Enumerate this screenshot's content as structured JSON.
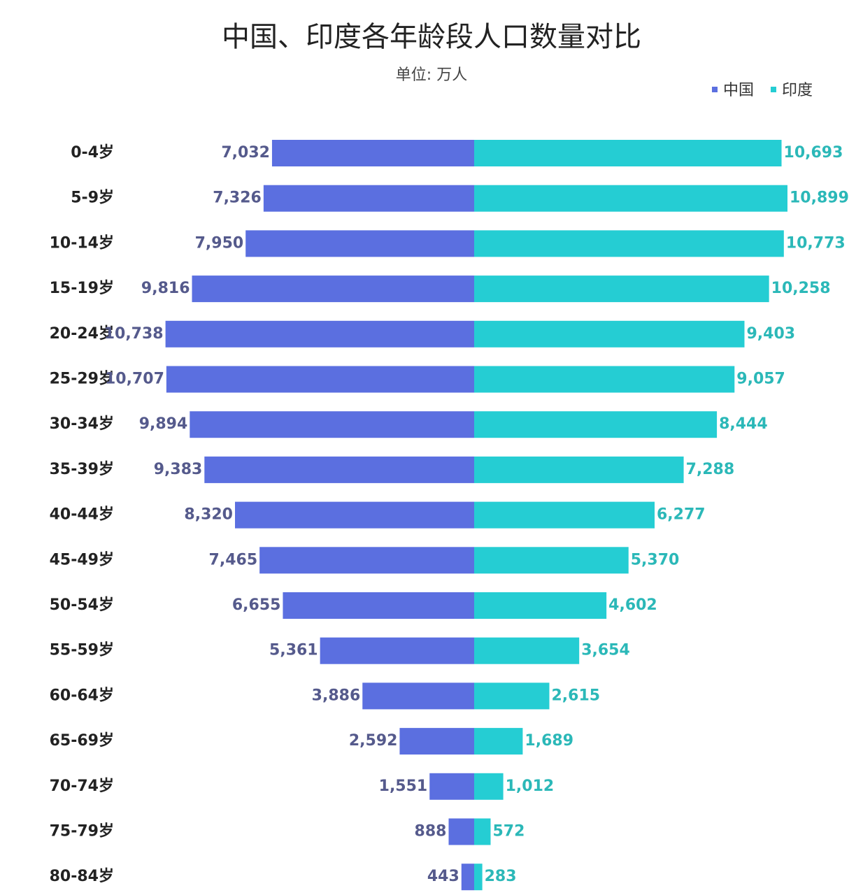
{
  "chart_data": {
    "type": "pyramid",
    "title": "中国、印度各年龄段人口数量对比",
    "subtitle": "单位: 万人",
    "categories": [
      "0-4岁",
      "5-9岁",
      "10-14岁",
      "15-19岁",
      "20-24岁",
      "25-29岁",
      "30-34岁",
      "35-39岁",
      "40-44岁",
      "45-49岁",
      "50-54岁",
      "55-59岁",
      "60-64岁",
      "65-69岁",
      "70-74岁",
      "75-79岁",
      "80-84岁"
    ],
    "series": [
      {
        "name": "中国",
        "color": "#5b6fe0",
        "label_color": "#555a8c",
        "values": [
          7032,
          7326,
          7950,
          9816,
          10738,
          10707,
          9894,
          9383,
          8320,
          7465,
          6655,
          5361,
          3886,
          2592,
          1551,
          888,
          443
        ],
        "value_labels": [
          "7,032",
          "7,326",
          "7,950",
          "9,816",
          "10,738",
          "10,707",
          "9,894",
          "9,383",
          "8,320",
          "7,465",
          "6,655",
          "5,361",
          "3,886",
          "2,592",
          "1,551",
          "888",
          "443"
        ]
      },
      {
        "name": "印度",
        "color": "#25cdd3",
        "label_color": "#2bb8b8",
        "values": [
          10693,
          10899,
          10773,
          10258,
          9403,
          9057,
          8444,
          7288,
          6277,
          5370,
          4602,
          3654,
          2615,
          1689,
          1012,
          572,
          283
        ],
        "value_labels": [
          "10,693",
          "10,899",
          "10,773",
          "10,258",
          "9,403",
          "9,057",
          "8,444",
          "7,288",
          "6,277",
          "5,370",
          "4,602",
          "3,654",
          "2,615",
          "1,689",
          "1,012",
          "572",
          "283"
        ]
      }
    ],
    "legend": "top-right"
  }
}
